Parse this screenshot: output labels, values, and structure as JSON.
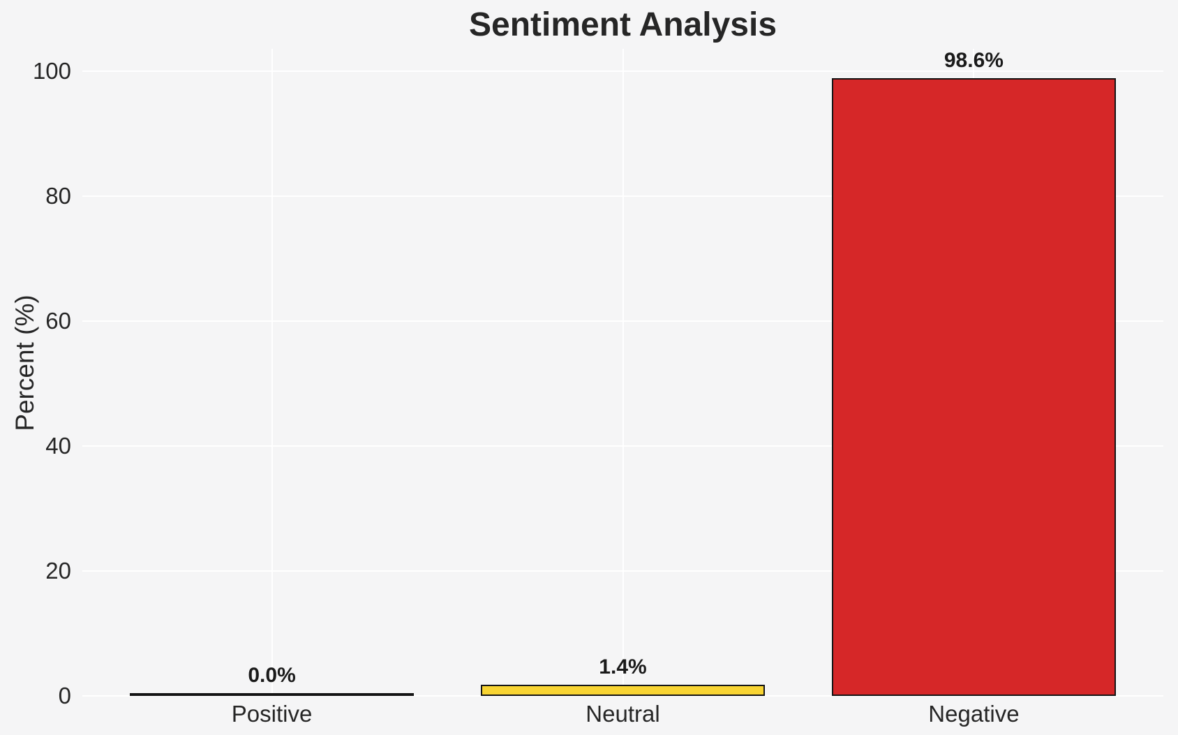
{
  "chart_data": {
    "type": "bar",
    "title": "Sentiment Analysis",
    "ylabel": "Percent (%)",
    "xlabel": "",
    "categories": [
      "Positive",
      "Neutral",
      "Negative"
    ],
    "values": [
      0.0,
      1.4,
      98.6
    ],
    "value_labels": [
      "0.0%",
      "1.4%",
      "98.6%"
    ],
    "bar_colors": [
      null,
      "#f8d433",
      "#d62728"
    ],
    "bar_edge_color": "#141414",
    "yticks": [
      0,
      20,
      40,
      60,
      80,
      100
    ],
    "ytick_labels": [
      "0",
      "20",
      "40",
      "60",
      "80",
      "100"
    ],
    "ylim": [
      0,
      103.6
    ],
    "grid": true,
    "legend": "none",
    "gridline_color": "#ffffff",
    "background_color": "#f5f5f6",
    "text_color": "#262626"
  }
}
